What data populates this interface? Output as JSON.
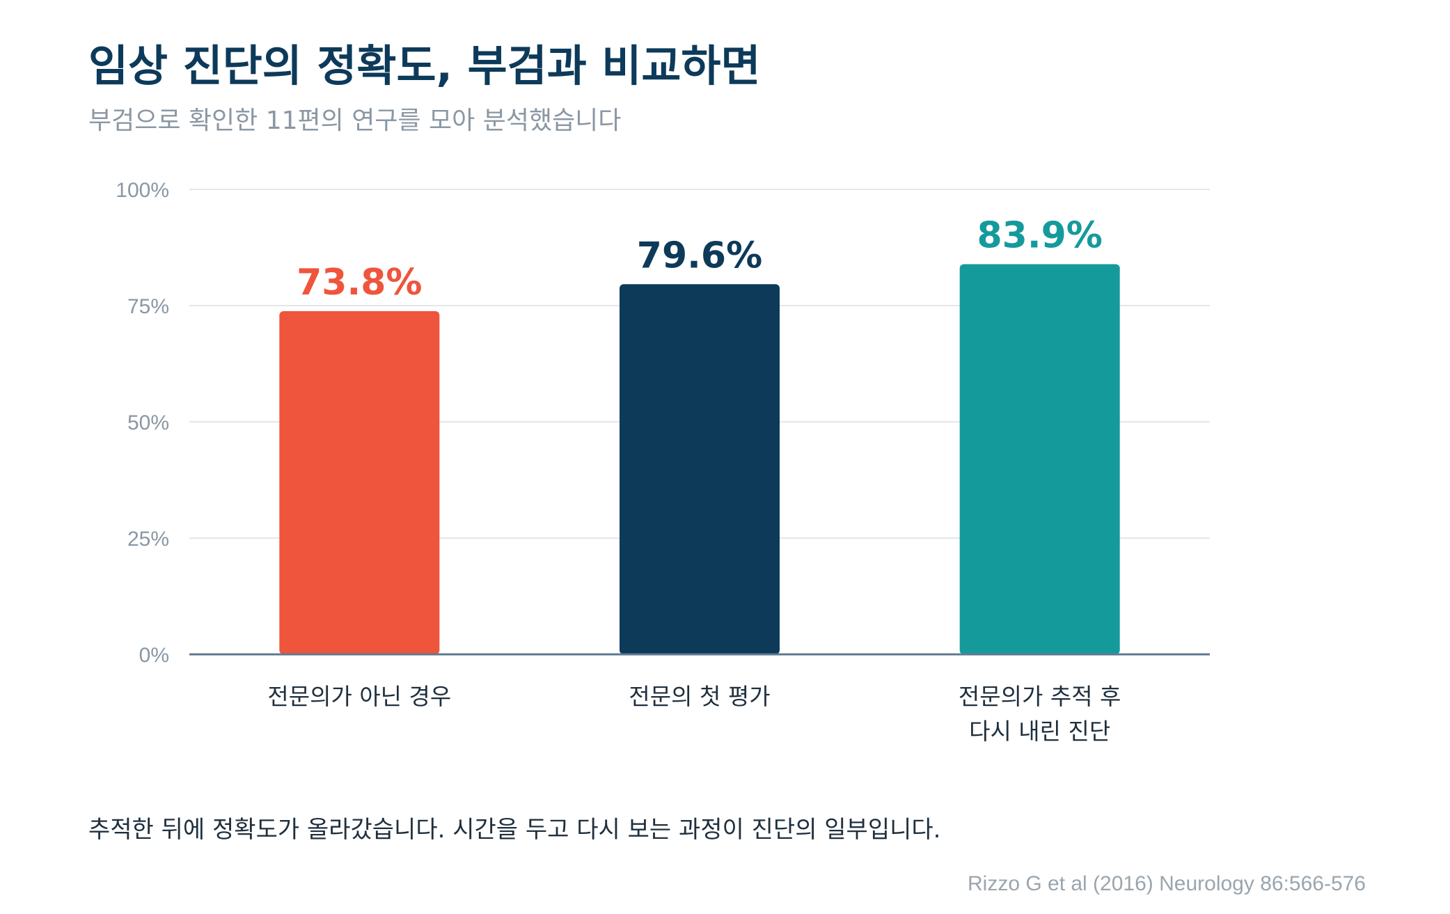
{
  "title": "임상 진단의 정확도, 부검과 비교하면",
  "subtitle": "부검으로 확인한 11편의 연구를 모아 분석했습니다",
  "note": "추적한 뒤에 정확도가 올라갔습니다. 시간을 두고 다시 보는 과정이 진단의 일부입니다.",
  "source": "Rizzo G et al (2016) Neurology 86:566-576",
  "chart_data": {
    "type": "bar",
    "categories": [
      [
        "전문의가 아닌 경우"
      ],
      [
        "전문의 첫 평가"
      ],
      [
        "전문의가 추적 후",
        "다시 내린 진단"
      ]
    ],
    "values": [
      73.8,
      79.6,
      83.9
    ],
    "value_labels": [
      "73.8%",
      "79.6%",
      "83.9%"
    ],
    "colors": [
      "#ef553c",
      "#0e3a5a",
      "#159a9c"
    ],
    "ylim": [
      0,
      100
    ],
    "yticks": [
      0,
      25,
      50,
      75,
      100
    ],
    "ytick_labels": [
      "0%",
      "25%",
      "50%",
      "75%",
      "100%"
    ],
    "grid": true,
    "legend": "none"
  }
}
